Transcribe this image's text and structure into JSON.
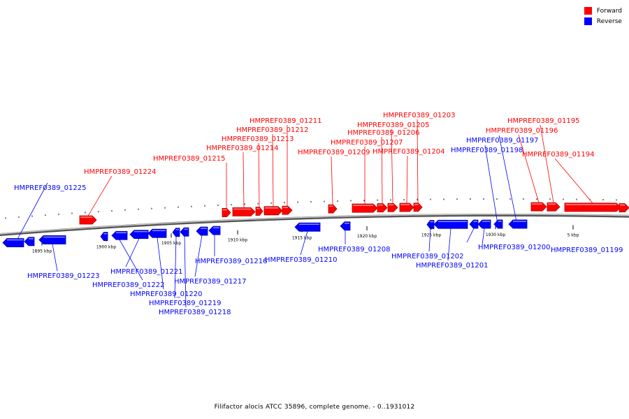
{
  "caption": "Filifactor alocis ATCC 35896, complete genome. - 0..1931012",
  "legend": [
    {
      "label": "Forward",
      "color": "#ff0000"
    },
    {
      "label": "Reverse",
      "color": "#0000ff"
    }
  ],
  "scale": {
    "ticks": [
      {
        "label": "1895 kbp",
        "bp": 1895000
      },
      {
        "label": "1900 kbp",
        "bp": 1900000
      },
      {
        "label": "1905 kbp",
        "bp": 1905000
      },
      {
        "label": "1910 kbp",
        "bp": 1910000
      },
      {
        "label": "1915 kbp",
        "bp": 1915000
      },
      {
        "label": "1920 kbp",
        "bp": 1920000
      },
      {
        "label": "1925 kbp",
        "bp": 1925000
      },
      {
        "label": "1930 kbp",
        "bp": 1930000
      },
      {
        "label": "5 kbp",
        "bp": 1935000
      }
    ]
  },
  "genes": [
    {
      "name": "HMPREF0389_01225",
      "strand": "reverse"
    },
    {
      "name": "HMPREF0389_01224",
      "strand": "forward"
    },
    {
      "name": "HMPREF0389_01223",
      "strand": "reverse"
    },
    {
      "name": "HMPREF0389_01222",
      "strand": "reverse"
    },
    {
      "name": "HMPREF0389_01221",
      "strand": "reverse"
    },
    {
      "name": "HMPREF0389_01220",
      "strand": "reverse"
    },
    {
      "name": "HMPREF0389_01219",
      "strand": "reverse"
    },
    {
      "name": "HMPREF0389_01218",
      "strand": "reverse"
    },
    {
      "name": "HMPREF0389_01217",
      "strand": "reverse"
    },
    {
      "name": "HMPREF0389_01216",
      "strand": "reverse"
    },
    {
      "name": "HMPREF0389_01215",
      "strand": "forward"
    },
    {
      "name": "HMPREF0389_01214",
      "strand": "forward"
    },
    {
      "name": "HMPREF0389_01213",
      "strand": "forward"
    },
    {
      "name": "HMPREF0389_01212",
      "strand": "forward"
    },
    {
      "name": "HMPREF0389_01211",
      "strand": "forward"
    },
    {
      "name": "HMPREF0389_01210",
      "strand": "reverse"
    },
    {
      "name": "HMPREF0389_01209",
      "strand": "forward"
    },
    {
      "name": "HMPREF0389_01208",
      "strand": "reverse"
    },
    {
      "name": "HMPREF0389_01207",
      "strand": "forward"
    },
    {
      "name": "HMPREF0389_01206",
      "strand": "forward"
    },
    {
      "name": "HMPREF0389_01205",
      "strand": "forward"
    },
    {
      "name": "HMPREF0389_01204",
      "strand": "forward"
    },
    {
      "name": "HMPREF0389_01203",
      "strand": "forward"
    },
    {
      "name": "HMPREF0389_01202",
      "strand": "reverse"
    },
    {
      "name": "HMPREF0389_01201",
      "strand": "reverse"
    },
    {
      "name": "HMPREF0389_01200",
      "strand": "reverse"
    },
    {
      "name": "HMPREF0389_01199",
      "strand": "reverse"
    },
    {
      "name": "HMPREF0389_01198",
      "strand": "reverse"
    },
    {
      "name": "HMPREF0389_01197",
      "strand": "reverse"
    },
    {
      "name": "HMPREF0389_01196",
      "strand": "forward"
    },
    {
      "name": "HMPREF0389_01195",
      "strand": "forward"
    },
    {
      "name": "HMPREF0389_01194",
      "strand": "forward"
    }
  ]
}
